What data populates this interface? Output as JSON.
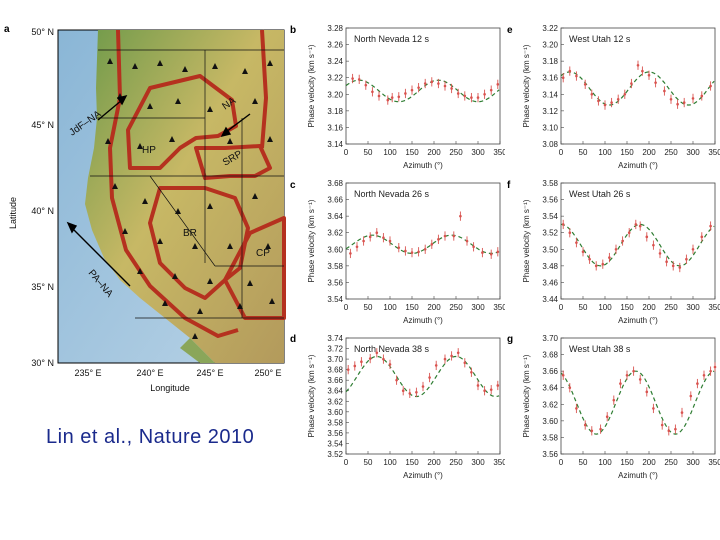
{
  "figure": {
    "citation": "Lin et al., Nature 2010",
    "colors": {
      "observed": "#d9534f",
      "fit": "#2e7d32",
      "plate_boundary": "#b5311f",
      "citation": "#1a2a8c"
    }
  },
  "map_panel": {
    "letter": "a",
    "xlabel": "Longitude",
    "ylabel": "Latitude",
    "lat_ticks": [
      "50° N",
      "45° N",
      "40° N",
      "35° N",
      "30° N"
    ],
    "lon_ticks": [
      "235° E",
      "240° E",
      "245° E",
      "250° E"
    ],
    "region_labels": [
      "JdF–NA",
      "NA",
      "HP",
      "SRP",
      "BR",
      "CP",
      "PA–NA"
    ]
  },
  "chart_data": [
    {
      "panel": "b",
      "type": "scatter",
      "title": "North Nevada 12 s",
      "xlabel": "Azimuth (°)",
      "ylabel": "Phase velocity (km s⁻¹)",
      "xlim": [
        0,
        350
      ],
      "ylim": [
        3.14,
        3.28
      ],
      "xticks": [
        "0",
        "50",
        "100",
        "150",
        "200",
        "250",
        "300",
        "350"
      ],
      "yticks": [
        "3.28",
        "3.26",
        "3.24",
        "3.22",
        "3.20",
        "3.18",
        "3.16",
        "3.14"
      ],
      "fit": {
        "mean": 3.204,
        "amp": 0.013,
        "phase": 30
      },
      "points": [
        [
          15,
          3.219
        ],
        [
          30,
          3.218
        ],
        [
          45,
          3.211
        ],
        [
          60,
          3.203
        ],
        [
          75,
          3.198
        ],
        [
          95,
          3.193
        ],
        [
          105,
          3.196
        ],
        [
          120,
          3.197
        ],
        [
          135,
          3.201
        ],
        [
          150,
          3.205
        ],
        [
          165,
          3.208
        ],
        [
          180,
          3.213
        ],
        [
          195,
          3.215
        ],
        [
          210,
          3.213
        ],
        [
          225,
          3.21
        ],
        [
          240,
          3.207
        ],
        [
          255,
          3.201
        ],
        [
          270,
          3.198
        ],
        [
          285,
          3.196
        ],
        [
          300,
          3.196
        ],
        [
          315,
          3.2
        ],
        [
          330,
          3.205
        ],
        [
          345,
          3.212
        ]
      ]
    },
    {
      "panel": "c",
      "type": "scatter",
      "title": "North Nevada 26 s",
      "xlabel": "Azimuth (°)",
      "ylabel": "Phase velocity (km s⁻¹)",
      "xlim": [
        0,
        350
      ],
      "ylim": [
        3.54,
        3.68
      ],
      "xticks": [
        "0",
        "50",
        "100",
        "150",
        "200",
        "250",
        "300",
        "350"
      ],
      "yticks": [
        "3.68",
        "3.66",
        "3.64",
        "3.62",
        "3.60",
        "3.58",
        "3.56",
        "3.54"
      ],
      "fit": {
        "mean": 3.606,
        "amp": 0.011,
        "phase": 60
      },
      "points": [
        [
          10,
          3.595
        ],
        [
          25,
          3.603
        ],
        [
          40,
          3.61
        ],
        [
          55,
          3.615
        ],
        [
          70,
          3.62
        ],
        [
          85,
          3.614
        ],
        [
          100,
          3.61
        ],
        [
          120,
          3.602
        ],
        [
          135,
          3.598
        ],
        [
          150,
          3.596
        ],
        [
          165,
          3.597
        ],
        [
          180,
          3.6
        ],
        [
          195,
          3.606
        ],
        [
          210,
          3.612
        ],
        [
          225,
          3.616
        ],
        [
          245,
          3.616
        ],
        [
          260,
          3.64
        ],
        [
          275,
          3.61
        ],
        [
          290,
          3.603
        ],
        [
          310,
          3.596
        ],
        [
          330,
          3.594
        ],
        [
          345,
          3.597
        ]
      ]
    },
    {
      "panel": "d",
      "type": "scatter",
      "title": "North Nevada 38 s",
      "xlabel": "Azimuth (°)",
      "ylabel": "Phase velocity (km s⁻¹)",
      "xlim": [
        0,
        350
      ],
      "ylim": [
        3.52,
        3.74
      ],
      "xticks": [
        "0",
        "50",
        "100",
        "150",
        "200",
        "250",
        "300",
        "350"
      ],
      "yticks": [
        "3.74",
        "3.72",
        "3.70",
        "3.68",
        "3.66",
        "3.64",
        "3.62",
        "3.60",
        "3.58",
        "3.56",
        "3.54",
        "3.52"
      ],
      "fit": {
        "mean": 3.667,
        "amp": 0.038,
        "phase": 70
      },
      "points": [
        [
          5,
          3.68
        ],
        [
          20,
          3.687
        ],
        [
          35,
          3.695
        ],
        [
          55,
          3.701
        ],
        [
          70,
          3.712
        ],
        [
          85,
          3.7
        ],
        [
          100,
          3.69
        ],
        [
          115,
          3.66
        ],
        [
          130,
          3.64
        ],
        [
          145,
          3.635
        ],
        [
          160,
          3.637
        ],
        [
          175,
          3.648
        ],
        [
          190,
          3.665
        ],
        [
          205,
          3.688
        ],
        [
          225,
          3.7
        ],
        [
          240,
          3.706
        ],
        [
          255,
          3.712
        ],
        [
          270,
          3.693
        ],
        [
          285,
          3.675
        ],
        [
          300,
          3.65
        ],
        [
          315,
          3.64
        ],
        [
          330,
          3.642
        ],
        [
          345,
          3.65
        ]
      ]
    },
    {
      "panel": "e",
      "type": "scatter",
      "title": "West Utah 12 s",
      "xlabel": "Azimuth (°)",
      "ylabel": "Phase velocity (km s⁻¹)",
      "xlim": [
        0,
        350
      ],
      "ylim": [
        3.08,
        3.22
      ],
      "xticks": [
        "0",
        "50",
        "100",
        "150",
        "200",
        "250",
        "300",
        "350"
      ],
      "yticks": [
        "3.22",
        "3.20",
        "3.18",
        "3.16",
        "3.14",
        "3.12",
        "3.10",
        "3.08"
      ],
      "fit": {
        "mean": 3.147,
        "amp": 0.02,
        "phase": 20
      },
      "points": [
        [
          5,
          3.16
        ],
        [
          20,
          3.168
        ],
        [
          35,
          3.162
        ],
        [
          55,
          3.152
        ],
        [
          70,
          3.14
        ],
        [
          85,
          3.132
        ],
        [
          100,
          3.127
        ],
        [
          115,
          3.13
        ],
        [
          130,
          3.134
        ],
        [
          145,
          3.14
        ],
        [
          160,
          3.153
        ],
        [
          175,
          3.175
        ],
        [
          185,
          3.168
        ],
        [
          200,
          3.163
        ],
        [
          215,
          3.154
        ],
        [
          235,
          3.144
        ],
        [
          250,
          3.134
        ],
        [
          265,
          3.128
        ],
        [
          280,
          3.13
        ],
        [
          300,
          3.135
        ],
        [
          320,
          3.138
        ],
        [
          340,
          3.15
        ]
      ]
    },
    {
      "panel": "f",
      "type": "scatter",
      "title": "West Utah 26 s",
      "xlabel": "Azimuth (°)",
      "ylabel": "Phase velocity (km s⁻¹)",
      "xlim": [
        0,
        350
      ],
      "ylim": [
        3.44,
        3.58
      ],
      "xticks": [
        "0",
        "50",
        "100",
        "150",
        "200",
        "250",
        "300",
        "350"
      ],
      "yticks": [
        "3.58",
        "3.56",
        "3.54",
        "3.52",
        "3.50",
        "3.48",
        "3.46",
        "3.44"
      ],
      "fit": {
        "mean": 3.505,
        "amp": 0.025,
        "phase": 0
      },
      "points": [
        [
          5,
          3.53
        ],
        [
          20,
          3.52
        ],
        [
          35,
          3.508
        ],
        [
          50,
          3.497
        ],
        [
          65,
          3.488
        ],
        [
          80,
          3.48
        ],
        [
          95,
          3.482
        ],
        [
          110,
          3.49
        ],
        [
          125,
          3.5
        ],
        [
          140,
          3.51
        ],
        [
          155,
          3.52
        ],
        [
          170,
          3.53
        ],
        [
          180,
          3.528
        ],
        [
          195,
          3.515
        ],
        [
          210,
          3.505
        ],
        [
          225,
          3.495
        ],
        [
          240,
          3.485
        ],
        [
          255,
          3.48
        ],
        [
          270,
          3.478
        ],
        [
          285,
          3.488
        ],
        [
          300,
          3.5
        ],
        [
          320,
          3.515
        ],
        [
          340,
          3.528
        ]
      ]
    },
    {
      "panel": "g",
      "type": "scatter",
      "title": "West Utah 38 s",
      "xlabel": "Azimuth (°)",
      "ylabel": "Phase velocity (km s⁻¹)",
      "xlim": [
        0,
        350
      ],
      "ylim": [
        3.56,
        3.7
      ],
      "xticks": [
        "0",
        "50",
        "100",
        "150",
        "200",
        "250",
        "300",
        "350"
      ],
      "yticks": [
        "3.70",
        "3.68",
        "3.66",
        "3.64",
        "3.62",
        "3.60",
        "3.58",
        "3.56"
      ],
      "fit": {
        "mean": 3.622,
        "amp": 0.038,
        "phase": 350
      },
      "points": [
        [
          5,
          3.655
        ],
        [
          20,
          3.64
        ],
        [
          35,
          3.615
        ],
        [
          55,
          3.595
        ],
        [
          70,
          3.588
        ],
        [
          90,
          3.59
        ],
        [
          105,
          3.605
        ],
        [
          120,
          3.625
        ],
        [
          135,
          3.645
        ],
        [
          150,
          3.655
        ],
        [
          165,
          3.66
        ],
        [
          180,
          3.65
        ],
        [
          195,
          3.635
        ],
        [
          210,
          3.615
        ],
        [
          230,
          3.595
        ],
        [
          245,
          3.588
        ],
        [
          260,
          3.59
        ],
        [
          275,
          3.61
        ],
        [
          295,
          3.63
        ],
        [
          310,
          3.645
        ],
        [
          325,
          3.655
        ],
        [
          340,
          3.66
        ],
        [
          350,
          3.665
        ]
      ]
    }
  ]
}
